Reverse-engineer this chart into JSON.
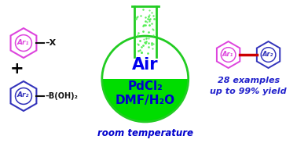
{
  "bg_color": "#ffffff",
  "flask_liquid_color": "#00dd00",
  "flask_outline_color": "#22cc22",
  "flask_neck_dot_color": "#55ee55",
  "air_text": "Air",
  "air_color": "#0000ee",
  "pdcl2_text": "PdCl₂",
  "dmf_text": "DMF/H₂O",
  "flask_text_color": "#0000cc",
  "room_temp_text": "room temperature",
  "room_temp_color": "#0000cc",
  "ar1_color": "#dd44dd",
  "ar2_color": "#3333bb",
  "bond_color": "#cc0000",
  "plus_color": "#000000",
  "examples_text": "28 examples",
  "yield_text": "up to 99% yield",
  "result_text_color": "#2222cc",
  "figsize": [
    3.78,
    1.83
  ],
  "dpi": 100
}
